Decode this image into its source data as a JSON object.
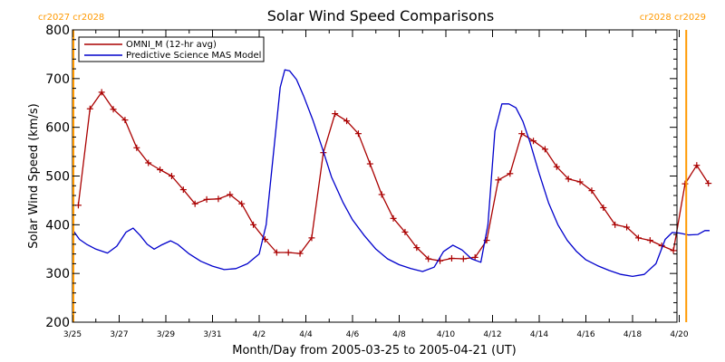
{
  "chart_data": {
    "type": "line",
    "title": "Solar Wind Speed Comparisons",
    "xlabel": "Month/Day from 2005-03-25 to 2005-04-21 (UT)",
    "ylabel": "Solar Wind Speed (km/s)",
    "xlim": [
      0,
      26.5
    ],
    "ylim": [
      200,
      800
    ],
    "y_ticks": [
      200,
      300,
      400,
      500,
      600,
      700,
      800
    ],
    "x_tick_labels": [
      {
        "x": 0,
        "label": "3/25"
      },
      {
        "x": 2,
        "label": "3/27"
      },
      {
        "x": 4,
        "label": "3/29"
      },
      {
        "x": 6,
        "label": "3/31"
      },
      {
        "x": 8,
        "label": "4/2"
      },
      {
        "x": 10,
        "label": "4/4"
      },
      {
        "x": 12,
        "label": "4/6"
      },
      {
        "x": 14,
        "label": "4/8"
      },
      {
        "x": 16,
        "label": "4/10"
      },
      {
        "x": 18,
        "label": "4/12"
      },
      {
        "x": 20,
        "label": "4/14"
      },
      {
        "x": 22,
        "label": "4/16"
      },
      {
        "x": 24,
        "label": "4/18"
      },
      {
        "x": 26,
        "label": "4/20"
      }
    ],
    "rotation_markers": [
      {
        "x": 0,
        "label": "cr2027 cr2028",
        "side": "left"
      },
      {
        "x": 26.3,
        "label": "cr2028 cr2029",
        "side": "right"
      }
    ],
    "legend_position": "top-left",
    "series": [
      {
        "name": "OMNI_M (12-hr avg)",
        "color": "#aa0000",
        "markers": "plus",
        "x": [
          0.25,
          0.75,
          1.25,
          1.75,
          2.25,
          2.75,
          3.25,
          3.75,
          4.25,
          4.75,
          5.25,
          5.75,
          6.25,
          6.75,
          7.25,
          7.75,
          8.25,
          8.75,
          9.25,
          9.75,
          10.25,
          10.75,
          11.25,
          11.75,
          12.25,
          12.75,
          13.25,
          13.75,
          14.25,
          14.75,
          15.25,
          15.75,
          16.25,
          16.75,
          17.25,
          17.75,
          18.25,
          18.75,
          19.25,
          19.75,
          20.25,
          20.75,
          21.25,
          21.75,
          22.25,
          22.75,
          23.25,
          23.75,
          24.25,
          24.75,
          25.25,
          25.75,
          26.25,
          26.75,
          27.25
        ],
        "values": [
          440,
          638,
          672,
          637,
          615,
          558,
          527,
          513,
          500,
          472,
          443,
          452,
          453,
          462,
          443,
          400,
          370,
          343,
          343,
          341,
          373,
          548,
          628,
          613,
          587,
          525,
          462,
          413,
          385,
          353,
          330,
          326,
          331,
          330,
          333,
          368,
          492,
          505,
          587,
          572,
          555,
          519,
          494,
          488,
          470,
          435,
          400,
          395,
          373,
          368,
          357,
          347,
          484,
          522,
          485
        ]
      },
      {
        "name": "Predictive Science MAS Model",
        "color": "#0000cc",
        "markers": "none",
        "x": [
          0,
          0.3,
          0.6,
          1.0,
          1.5,
          1.9,
          2.3,
          2.6,
          2.9,
          3.2,
          3.5,
          3.8,
          4.2,
          4.5,
          5.0,
          5.5,
          6.0,
          6.5,
          7.0,
          7.5,
          8.0,
          8.3,
          8.6,
          8.9,
          9.1,
          9.3,
          9.6,
          9.9,
          10.3,
          10.7,
          11.1,
          11.6,
          12.0,
          12.5,
          13.0,
          13.5,
          14.0,
          14.5,
          15.0,
          15.5,
          15.9,
          16.3,
          16.7,
          17.1,
          17.5,
          17.8,
          18.1,
          18.4,
          18.7,
          19.0,
          19.3,
          19.6,
          20.0,
          20.4,
          20.8,
          21.2,
          21.6,
          22.0,
          22.5,
          23.0,
          23.5,
          24.0,
          24.5,
          25.0,
          25.4,
          25.7,
          26.0,
          26.4,
          26.8,
          27.1,
          27.3
        ],
        "values": [
          390,
          370,
          360,
          350,
          342,
          356,
          385,
          393,
          378,
          360,
          350,
          358,
          367,
          360,
          340,
          325,
          315,
          308,
          310,
          320,
          340,
          400,
          540,
          682,
          718,
          716,
          698,
          665,
          615,
          558,
          498,
          445,
          410,
          378,
          350,
          330,
          318,
          310,
          304,
          313,
          345,
          358,
          348,
          330,
          323,
          400,
          592,
          648,
          648,
          640,
          612,
          570,
          505,
          445,
          400,
          368,
          345,
          328,
          316,
          306,
          298,
          294,
          298,
          320,
          370,
          384,
          383,
          379,
          380,
          388,
          388
        ]
      }
    ]
  }
}
